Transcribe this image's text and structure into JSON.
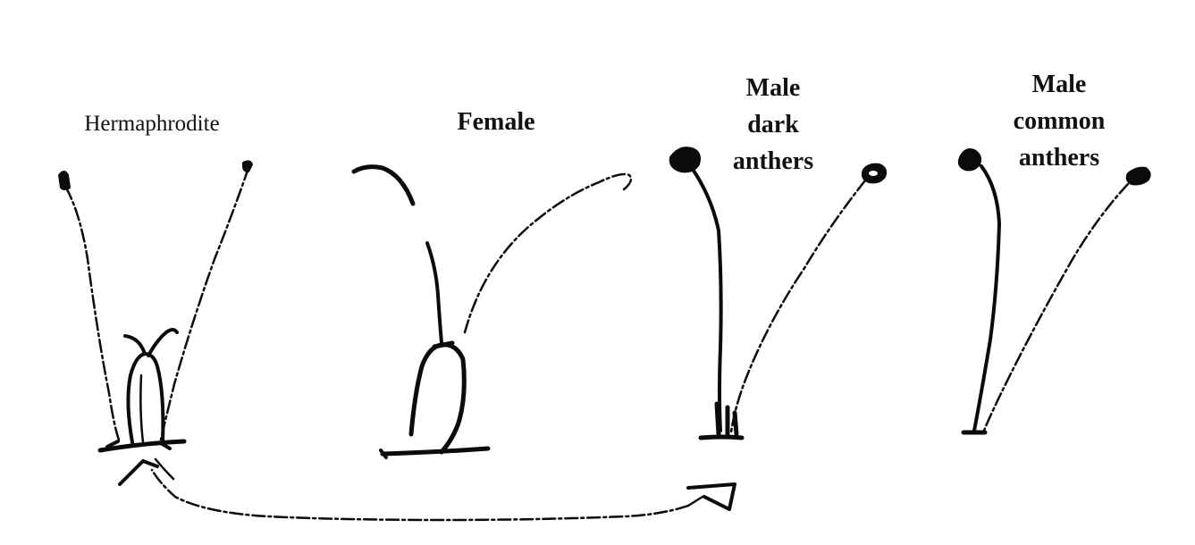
{
  "labels": {
    "hermaphrodite": "Hermaphrodite",
    "female": "Female",
    "male_dark": [
      "Male",
      "dark",
      "anthers"
    ],
    "male_common": [
      "Male",
      "common",
      "anthers"
    ]
  },
  "colors": {
    "ink": "#0b0b0b",
    "paper": "#ffffff"
  }
}
